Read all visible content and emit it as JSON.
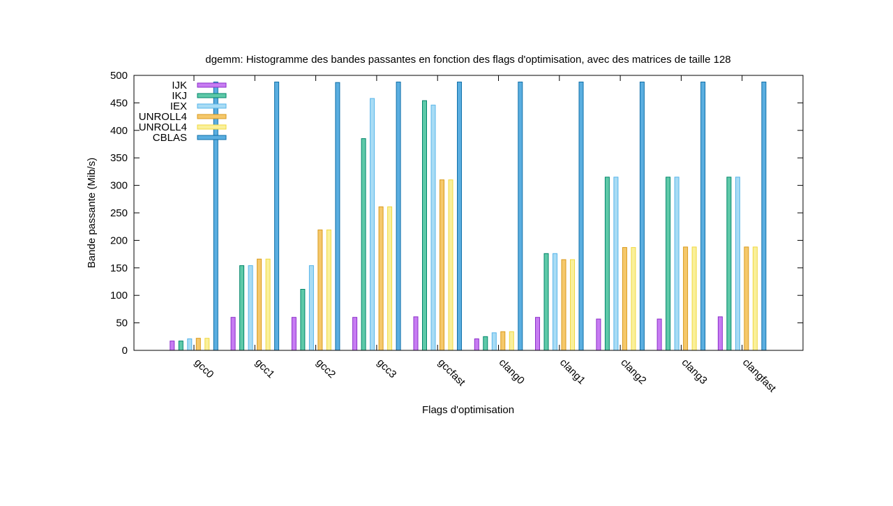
{
  "chart_data": {
    "type": "bar",
    "title": "dgemm: Histogramme des bandes passantes en fonction des flags d'optimisation,  avec des matrices de taille 128",
    "xlabel": "Flags d'optimisation",
    "ylabel": "Bande passante (Mib/s)",
    "ylim": [
      0,
      500
    ],
    "yticks": [
      0,
      50,
      100,
      150,
      200,
      250,
      300,
      350,
      400,
      450,
      500
    ],
    "grid": false,
    "legend_position": "top-left",
    "categories": [
      "gcc0",
      "gcc1",
      "gcc2",
      "gcc3",
      "gccfast",
      "clang0",
      "clang1",
      "clang2",
      "clang3",
      "clangfast"
    ],
    "series": [
      {
        "name": "IJK",
        "color": "#c77cf2",
        "stroke": "#8b2fc9",
        "values": [
          17,
          60,
          60,
          60,
          61,
          21,
          60,
          57,
          57,
          61
        ]
      },
      {
        "name": "IKJ",
        "color": "#5ec9a8",
        "stroke": "#00856a",
        "values": [
          17,
          154,
          111,
          385,
          454,
          25,
          176,
          315,
          315,
          315
        ]
      },
      {
        "name": "IEX",
        "color": "#a8dcf5",
        "stroke": "#56b4e9",
        "values": [
          21,
          154,
          154,
          458,
          446,
          32,
          176,
          315,
          315,
          315
        ]
      },
      {
        "name": "UNROLL4",
        "color": "#f5c86b",
        "stroke": "#d99a1c",
        "values": [
          22,
          166,
          219,
          261,
          310,
          34,
          165,
          187,
          188,
          188
        ]
      },
      {
        "name": "UNROLL4",
        "color": "#faf09a",
        "stroke": "#f0d840",
        "values": [
          22,
          166,
          219,
          261,
          310,
          34,
          165,
          187,
          188,
          188
        ]
      },
      {
        "name": "CBLAS",
        "color": "#5aaee0",
        "stroke": "#0f6fa8",
        "values": [
          488,
          488,
          487,
          488,
          488,
          488,
          488,
          488,
          488,
          488
        ]
      }
    ]
  }
}
